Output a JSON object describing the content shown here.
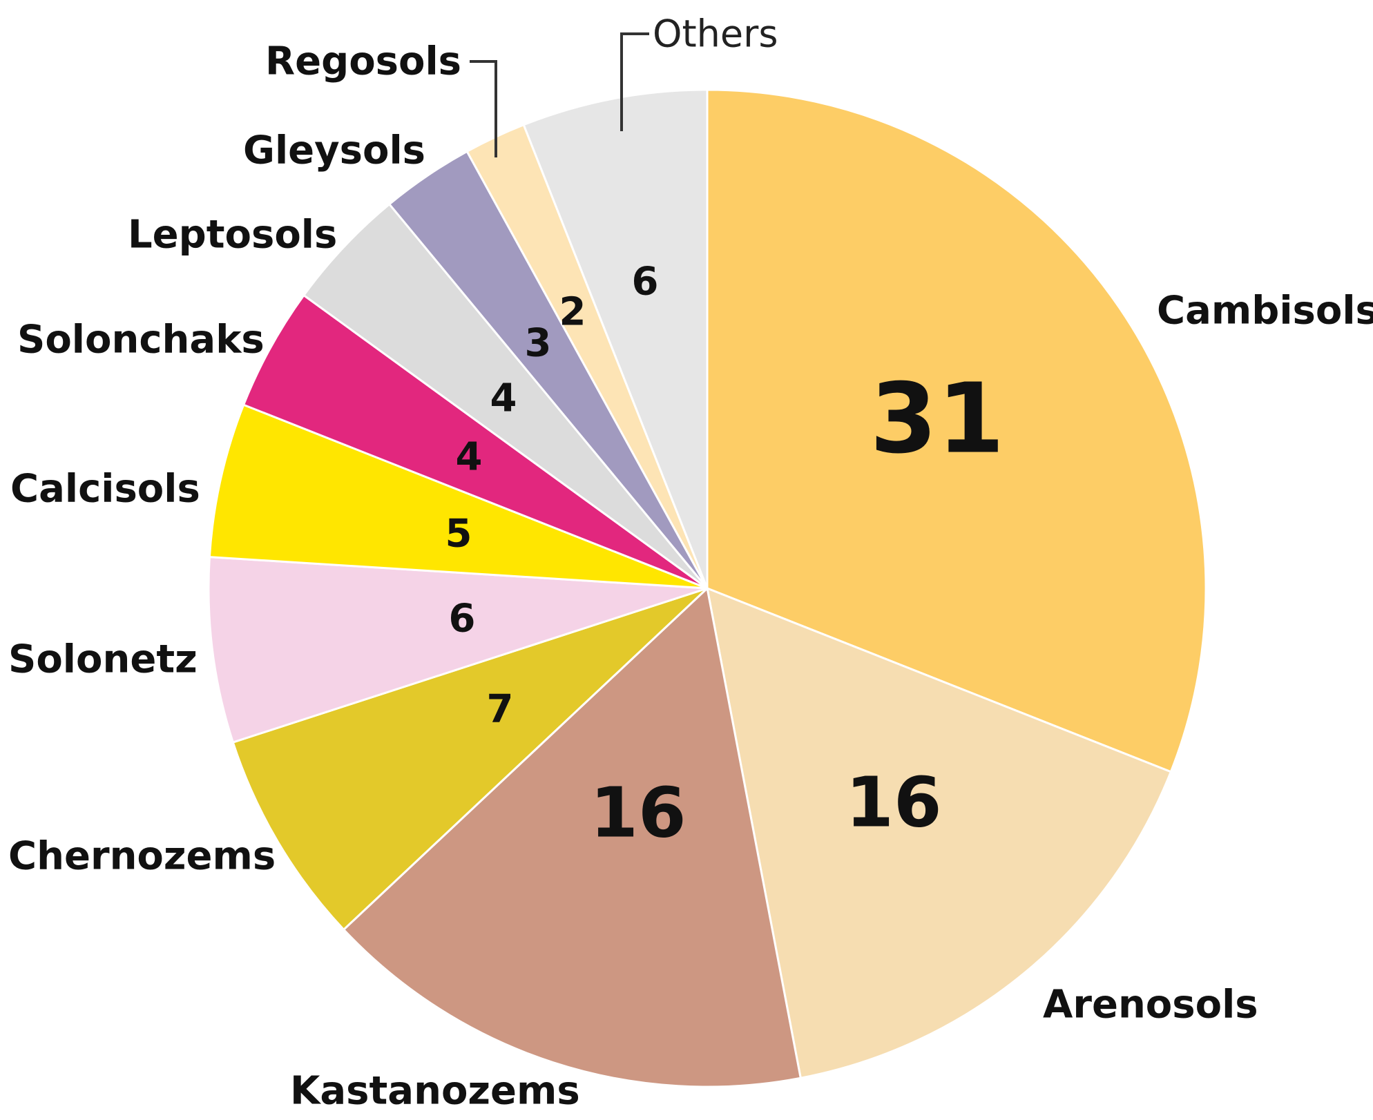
{
  "chart_data": {
    "type": "pie",
    "title": "",
    "slices": [
      {
        "label": "Cambisols",
        "value": 31,
        "color": "#FDCD66"
      },
      {
        "label": "Arenosols",
        "value": 16,
        "color": "#F6DDB1"
      },
      {
        "label": "Kastanozems",
        "value": 16,
        "color": "#CD9782"
      },
      {
        "label": "Chernozems",
        "value": 7,
        "color": "#E3C92A"
      },
      {
        "label": "Solonetz",
        "value": 6,
        "color": "#F5D3E7"
      },
      {
        "label": "Calcisols",
        "value": 5,
        "color": "#FFE600"
      },
      {
        "label": "Solonchaks",
        "value": 4,
        "color": "#E2277E"
      },
      {
        "label": "Leptosols",
        "value": 4,
        "color": "#DCDCDC"
      },
      {
        "label": "Gleysols",
        "value": 3,
        "color": "#A19ABF"
      },
      {
        "label": "Regosols",
        "value": 2,
        "color": "#FDE4B5"
      },
      {
        "label": "Others",
        "value": 6,
        "color": "#E6E6E6"
      }
    ],
    "start": "12 o'clock",
    "direction": "clockwise",
    "legend": "none (labels around the pie)"
  }
}
